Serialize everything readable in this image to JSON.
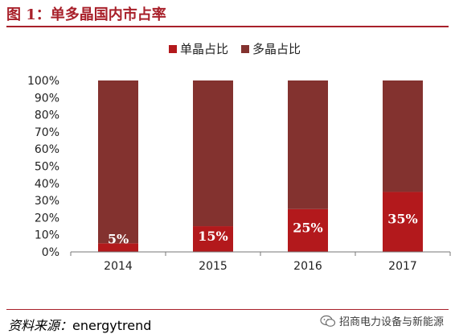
{
  "title": "图 1：单多晶国内市占率",
  "source": {
    "label": "资料来源：",
    "value": "energytrend"
  },
  "watermark": {
    "text": "招商电力设备与新能源",
    "icon": "wechat-icon"
  },
  "colors": {
    "accent": "#a8202a",
    "mono": "#b3191c",
    "multi": "#83322f",
    "axis": "#777777"
  },
  "chart_data": {
    "type": "bar",
    "stacked": true,
    "categories": [
      "2014",
      "2015",
      "2016",
      "2017"
    ],
    "series": [
      {
        "name": "单晶占比",
        "values": [
          5,
          15,
          25,
          35
        ]
      },
      {
        "name": "多晶占比",
        "values": [
          95,
          85,
          75,
          65
        ]
      }
    ],
    "data_labels": [
      "5%",
      "15%",
      "25%",
      "35%"
    ],
    "ylim": [
      0,
      100
    ],
    "yticks": [
      "0%",
      "10%",
      "20%",
      "30%",
      "40%",
      "50%",
      "60%",
      "70%",
      "80%",
      "90%",
      "100%"
    ],
    "grid": false,
    "legend_position": "top-center"
  }
}
